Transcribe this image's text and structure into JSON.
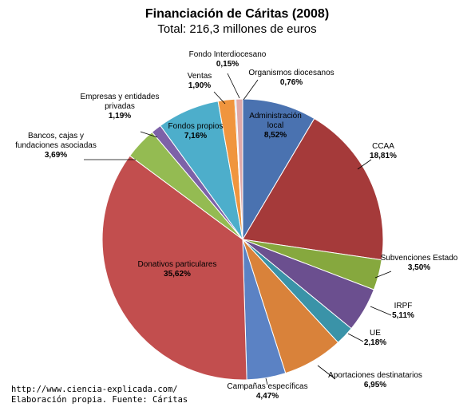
{
  "chart_data": {
    "type": "pie",
    "title": "Financiación de Cáritas (2008)",
    "subtitle": "Total: 216,3 millones de euros",
    "slices": [
      {
        "label": "Administración local",
        "percent_label": "8,52%",
        "value": 8.52,
        "color": "#4a72b0"
      },
      {
        "label": "CCAA",
        "percent_label": "18,81%",
        "value": 18.81,
        "color": "#a53a3a"
      },
      {
        "label": "Subvenciones Estado",
        "percent_label": "3,50%",
        "value": 3.5,
        "color": "#86a83e"
      },
      {
        "label": "IRPF",
        "percent_label": "5,11%",
        "value": 5.11,
        "color": "#6b4f8f"
      },
      {
        "label": "UE",
        "percent_label": "2,18%",
        "value": 2.18,
        "color": "#3a93a8"
      },
      {
        "label": "Aportaciones destinatarios",
        "percent_label": "6,95%",
        "value": 6.95,
        "color": "#d9823a"
      },
      {
        "label": "Campañas específicas",
        "percent_label": "4,47%",
        "value": 4.47,
        "color": "#5b82c4"
      },
      {
        "label": "Donativos particulares",
        "percent_label": "35,62%",
        "value": 35.62,
        "color": "#c24e4e"
      },
      {
        "label": "Bancos, cajas y fundaciones asociadas",
        "percent_label": "3,69%",
        "value": 3.69,
        "color": "#94bb52"
      },
      {
        "label": "Empresas y entidades privadas",
        "percent_label": "1,19%",
        "value": 1.19,
        "color": "#7d62a8"
      },
      {
        "label": "Fondos propios",
        "percent_label": "7,16%",
        "value": 7.16,
        "color": "#4daecb"
      },
      {
        "label": "Ventas",
        "percent_label": "1,90%",
        "value": 1.9,
        "color": "#f0953e"
      },
      {
        "label": "Fondo Interdiocesano",
        "percent_label": "0,15%",
        "value": 0.15,
        "color": "#a9bfe0"
      },
      {
        "label": "Organismos diocesanos",
        "percent_label": "0,76%",
        "value": 0.76,
        "color": "#e0a9a9"
      }
    ]
  },
  "footer": {
    "line1": "http://www.ciencia-explicada.com/",
    "line2": "Elaboración propia. Fuente: Cáritas"
  }
}
